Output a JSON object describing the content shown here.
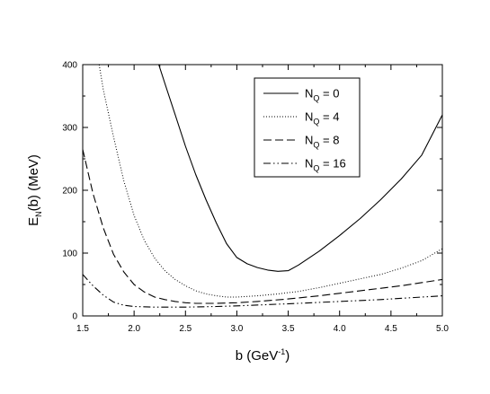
{
  "chart_data": {
    "type": "line",
    "xlabel": {
      "main": "b (GeV",
      "sup": "-1",
      "close": ")"
    },
    "ylabel": {
      "e": "E",
      "sub": "N",
      "rest": "(b) (MeV)"
    },
    "xlim": [
      1.5,
      5.0
    ],
    "ylim": [
      0,
      400
    ],
    "x_ticks": [
      "1.5",
      "2.0",
      "2.5",
      "3.0",
      "3.5",
      "4.0",
      "4.5",
      "5.0"
    ],
    "y_ticks": [
      "0",
      "100",
      "200",
      "300",
      "400"
    ],
    "grid": false,
    "legend_position": "top-right",
    "series": [
      {
        "legend": {
          "prefix": "N",
          "sub": "Q",
          "suffix": " = 0"
        },
        "style": "solid",
        "points": [
          [
            2.24,
            400
          ],
          [
            2.3,
            370
          ],
          [
            2.4,
            320
          ],
          [
            2.5,
            270
          ],
          [
            2.6,
            225
          ],
          [
            2.7,
            185
          ],
          [
            2.8,
            148
          ],
          [
            2.9,
            115
          ],
          [
            3.0,
            93
          ],
          [
            3.1,
            83
          ],
          [
            3.2,
            77
          ],
          [
            3.3,
            73
          ],
          [
            3.4,
            71
          ],
          [
            3.5,
            72
          ],
          [
            3.6,
            81
          ],
          [
            3.8,
            103
          ],
          [
            4.0,
            128
          ],
          [
            4.2,
            155
          ],
          [
            4.4,
            185
          ],
          [
            4.6,
            218
          ],
          [
            4.8,
            256
          ],
          [
            5.0,
            320
          ]
        ]
      },
      {
        "legend": {
          "prefix": "N",
          "sub": "Q",
          "suffix": " = 4"
        },
        "style": "dotted",
        "points": [
          [
            1.66,
            400
          ],
          [
            1.7,
            360
          ],
          [
            1.8,
            285
          ],
          [
            1.9,
            215
          ],
          [
            2.0,
            160
          ],
          [
            2.1,
            120
          ],
          [
            2.2,
            92
          ],
          [
            2.3,
            72
          ],
          [
            2.4,
            58
          ],
          [
            2.5,
            48
          ],
          [
            2.6,
            40
          ],
          [
            2.7,
            35
          ],
          [
            2.8,
            32
          ],
          [
            2.9,
            30
          ],
          [
            3.0,
            30
          ],
          [
            3.2,
            32
          ],
          [
            3.4,
            35
          ],
          [
            3.6,
            39
          ],
          [
            3.8,
            45
          ],
          [
            4.0,
            52
          ],
          [
            4.2,
            59
          ],
          [
            4.4,
            66
          ],
          [
            4.6,
            76
          ],
          [
            4.8,
            88
          ],
          [
            5.0,
            107
          ]
        ]
      },
      {
        "legend": {
          "prefix": "N",
          "sub": "Q",
          "suffix": " = 8"
        },
        "style": "dashed",
        "points": [
          [
            1.5,
            265
          ],
          [
            1.6,
            195
          ],
          [
            1.7,
            140
          ],
          [
            1.8,
            98
          ],
          [
            1.9,
            70
          ],
          [
            2.0,
            50
          ],
          [
            2.1,
            38
          ],
          [
            2.2,
            30
          ],
          [
            2.3,
            26
          ],
          [
            2.4,
            23
          ],
          [
            2.5,
            21
          ],
          [
            2.6,
            20
          ],
          [
            2.8,
            20
          ],
          [
            3.0,
            21
          ],
          [
            3.2,
            23
          ],
          [
            3.5,
            27
          ],
          [
            3.8,
            32
          ],
          [
            4.0,
            36
          ],
          [
            4.3,
            42
          ],
          [
            4.6,
            48
          ],
          [
            5.0,
            58
          ]
        ]
      },
      {
        "legend": {
          "prefix": "N",
          "sub": "Q",
          "suffix": " = 16"
        },
        "style": "dashdotdot",
        "points": [
          [
            1.5,
            66
          ],
          [
            1.6,
            48
          ],
          [
            1.7,
            33
          ],
          [
            1.8,
            22
          ],
          [
            1.9,
            17
          ],
          [
            2.0,
            15
          ],
          [
            2.2,
            14
          ],
          [
            2.5,
            14
          ],
          [
            2.8,
            15
          ],
          [
            3.0,
            16
          ],
          [
            3.3,
            18
          ],
          [
            3.6,
            20
          ],
          [
            4.0,
            23
          ],
          [
            4.4,
            26
          ],
          [
            4.8,
            30
          ],
          [
            5.0,
            32
          ]
        ]
      }
    ]
  }
}
